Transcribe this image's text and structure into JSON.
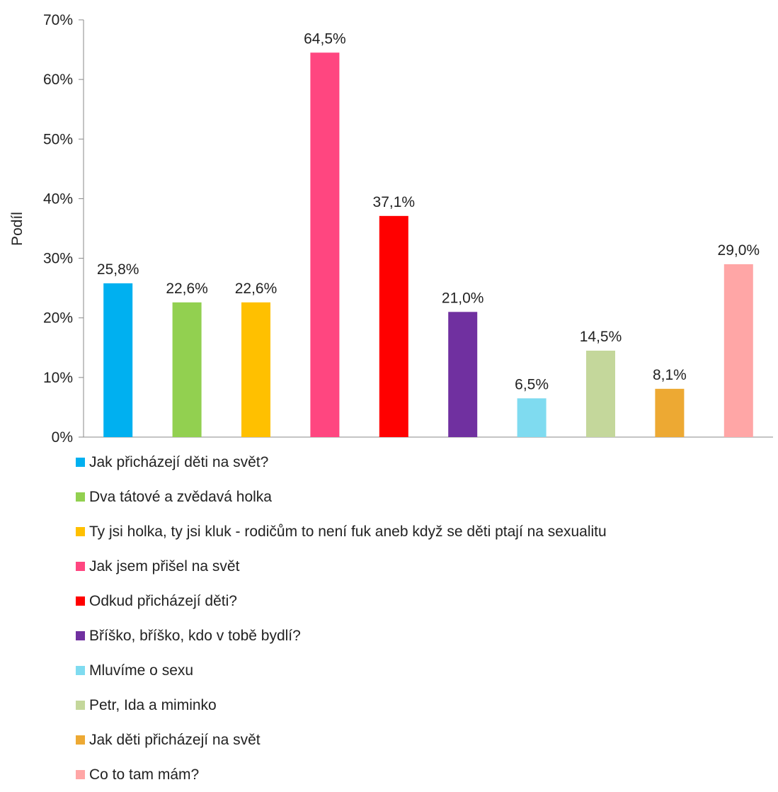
{
  "chart_data": {
    "type": "bar",
    "ylabel": "Podíl",
    "xlabel": "",
    "ylim": [
      0,
      70
    ],
    "yticks": [
      "0%",
      "10%",
      "20%",
      "30%",
      "40%",
      "50%",
      "60%",
      "70%"
    ],
    "grid": false,
    "legend_position": "bottom",
    "series": [
      {
        "name": "Jak přicházejí děti na svět?",
        "value": 25.8,
        "label": "25,8%",
        "color": "#00b0f0"
      },
      {
        "name": "Dva tátové a zvědavá holka",
        "value": 22.6,
        "label": "22,6%",
        "color": "#92d050"
      },
      {
        "name": "Ty jsi holka, ty jsi kluk - rodičům to není fuk aneb když se děti ptají na sexualitu",
        "value": 22.6,
        "label": "22,6%",
        "color": "#ffc000"
      },
      {
        "name": "Jak jsem přišel na svět",
        "value": 64.5,
        "label": "64,5%",
        "color": "#ff4680"
      },
      {
        "name": "Odkud přicházejí děti?",
        "value": 37.1,
        "label": "37,1%",
        "color": "#ff0000"
      },
      {
        "name": "Bříško, bříško, kdo v tobě bydlí?",
        "value": 21.0,
        "label": "21,0%",
        "color": "#7030a0"
      },
      {
        "name": "Mluvíme o sexu",
        "value": 6.5,
        "label": "6,5%",
        "color": "#7fdbf0"
      },
      {
        "name": "Petr, Ida a miminko",
        "value": 14.5,
        "label": "14,5%",
        "color": "#c4d79b"
      },
      {
        "name": "Jak děti přicházejí na svět",
        "value": 8.1,
        "label": "8,1%",
        "color": "#eda933"
      },
      {
        "name": "Co to tam mám?",
        "value": 29.0,
        "label": "29,0%",
        "color": "#ffa6a6"
      }
    ]
  }
}
